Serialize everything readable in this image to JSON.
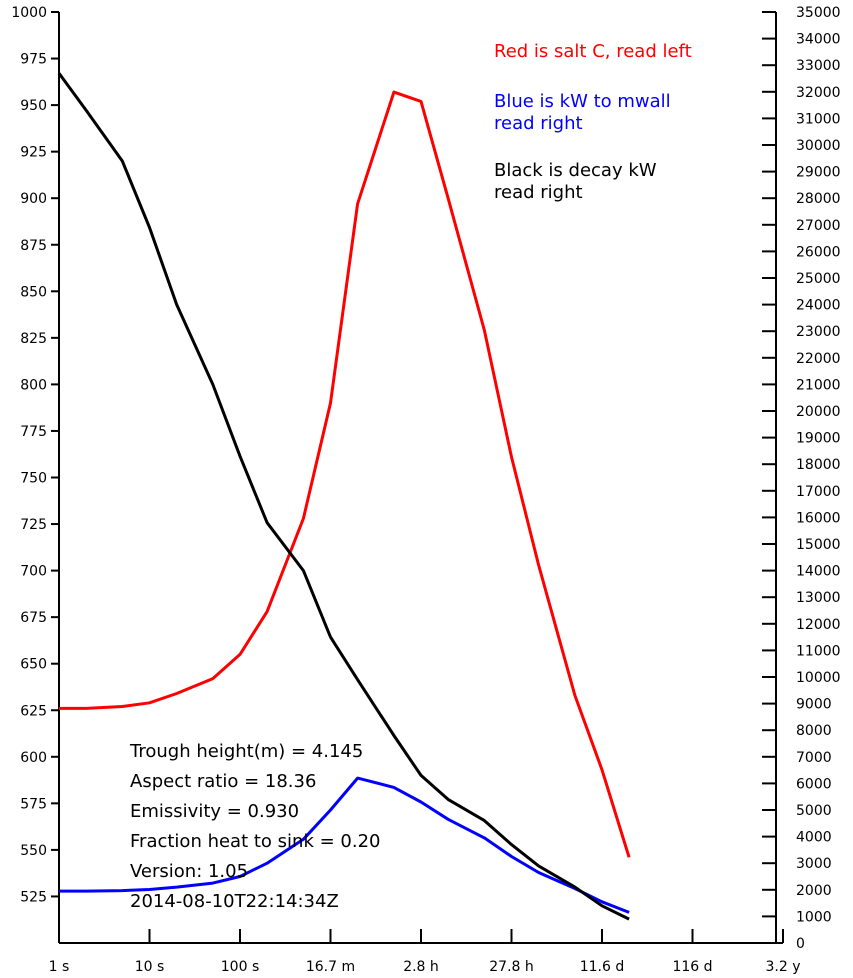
{
  "chart_data": {
    "type": "line",
    "title": "",
    "x_scale": "log",
    "x_ticks": [
      "1 s",
      "10 s",
      "100 s",
      "16.7 m",
      "2.8 h",
      "27.8 h",
      "11.6 d",
      "116 d",
      "3.2 y"
    ],
    "left_axis": {
      "min": 500,
      "max": 1000,
      "ticks": [
        525,
        550,
        575,
        600,
        625,
        650,
        675,
        700,
        725,
        750,
        775,
        800,
        825,
        850,
        875,
        900,
        925,
        950,
        975,
        1000
      ]
    },
    "right_axis": {
      "min": 0,
      "max": 35000,
      "ticks": [
        0,
        1000,
        2000,
        3000,
        4000,
        5000,
        6000,
        7000,
        8000,
        9000,
        10000,
        11000,
        12000,
        13000,
        14000,
        15000,
        16000,
        17000,
        18000,
        19000,
        20000,
        21000,
        22000,
        23000,
        24000,
        25000,
        26000,
        27000,
        28000,
        29000,
        30000,
        31000,
        32000,
        33000,
        34000,
        35000
      ]
    },
    "x_decades": [
      0,
      0.3,
      0.7,
      1.0,
      1.3,
      1.7,
      2.0,
      2.3,
      2.7,
      3.0,
      3.3,
      3.7,
      4.0,
      4.3,
      4.7,
      5.0,
      5.3,
      5.7,
      6.0,
      6.3
    ],
    "series": [
      {
        "axis": "left",
        "color": "#ff0000",
        "values": [
          626,
          626,
          627,
          629,
          634,
          642,
          655,
          678,
          728,
          790,
          897,
          957,
          952,
          900,
          829,
          761,
          703,
          633,
          593,
          546
        ]
      },
      {
        "axis": "right",
        "color": "#0000ff",
        "values": [
          1950,
          1950,
          1970,
          2010,
          2100,
          2250,
          2500,
          3000,
          3900,
          5000,
          6200,
          5850,
          5300,
          4650,
          3950,
          3250,
          2650,
          2050,
          1550,
          1150
        ]
      },
      {
        "axis": "right",
        "color": "#000000",
        "values": [
          32700,
          31300,
          29400,
          26900,
          24000,
          21000,
          18300,
          15800,
          14000,
          11500,
          9900,
          7800,
          6300,
          5400,
          4600,
          3700,
          2900,
          2100,
          1400,
          900
        ]
      }
    ],
    "legend_notes": [
      {
        "text": "Red is salt C, read left",
        "color": "#ff0000"
      },
      {
        "text": "Blue is kW to mwall",
        "color": "#0000ff"
      },
      {
        "text": "read right",
        "color": "#0000ff"
      },
      {
        "text": "Black is decay kW",
        "color": "#000000"
      },
      {
        "text": "read right",
        "color": "#000000"
      }
    ],
    "annotations": [
      "Trough height(m) = 4.145",
      "Aspect ratio = 18.36",
      "Emissivity = 0.930",
      "Fraction heat to sink = 0.20",
      "Version: 1.05",
      "2014-08-10T22:14:34Z"
    ]
  }
}
